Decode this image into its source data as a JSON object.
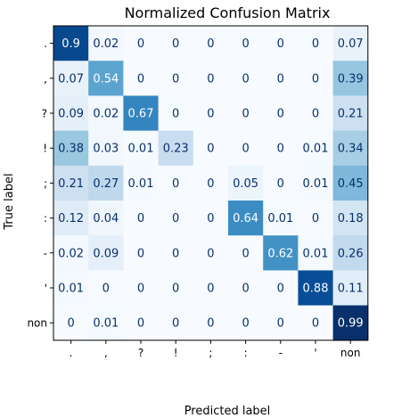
{
  "chart_data": {
    "type": "heatmap",
    "title": "Normalized Confusion Matrix",
    "xlabel": "Predicted label",
    "ylabel": "True label",
    "x_categories": [
      ".",
      ",",
      "?",
      "!",
      ";",
      ":",
      "-",
      "'",
      "non"
    ],
    "y_categories": [
      ".",
      ",",
      "?",
      "!",
      ";",
      ":",
      "-",
      "'",
      "non"
    ],
    "values": [
      [
        0.9,
        0.02,
        0,
        0,
        0,
        0,
        0,
        0,
        0.07
      ],
      [
        0.07,
        0.54,
        0,
        0,
        0,
        0,
        0,
        0,
        0.39
      ],
      [
        0.09,
        0.02,
        0.67,
        0,
        0,
        0,
        0,
        0,
        0.21
      ],
      [
        0.38,
        0.03,
        0.01,
        0.23,
        0,
        0,
        0,
        0.01,
        0.34
      ],
      [
        0.21,
        0.27,
        0.01,
        0,
        0,
        0.05,
        0,
        0.01,
        0.45
      ],
      [
        0.12,
        0.04,
        0,
        0,
        0,
        0.64,
        0.01,
        0,
        0.18
      ],
      [
        0.02,
        0.09,
        0,
        0,
        0,
        0,
        0.62,
        0.01,
        0.26
      ],
      [
        0.01,
        0,
        0,
        0,
        0,
        0,
        0,
        0.88,
        0.11
      ],
      [
        0,
        0.01,
        0,
        0,
        0,
        0,
        0,
        0,
        0.99
      ]
    ],
    "vmin": 0,
    "vmax": 0.99,
    "colormap": "Blues",
    "colors": {
      "low": "#f7fbff",
      "high": "#08306b",
      "text_dark": "#08306b",
      "text_light": "#ffffff"
    }
  }
}
